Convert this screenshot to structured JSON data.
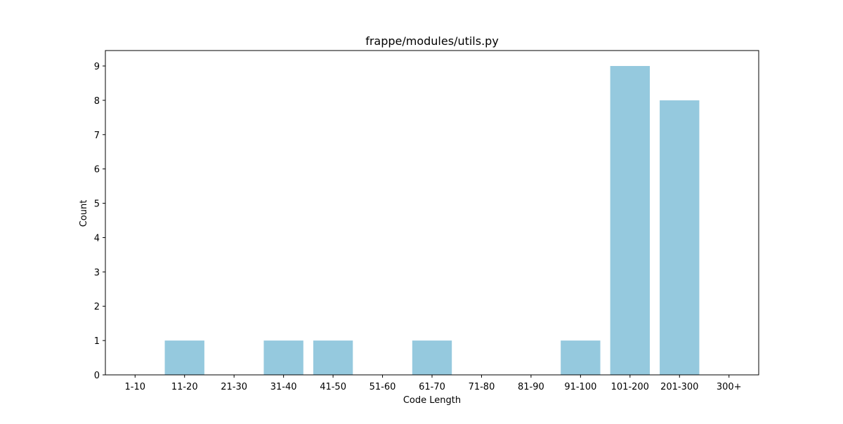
{
  "chart_data": {
    "type": "bar",
    "title": "frappe/modules/utils.py",
    "xlabel": "Code Length",
    "ylabel": "Count",
    "categories": [
      "1-10",
      "11-20",
      "21-30",
      "31-40",
      "41-50",
      "51-60",
      "61-70",
      "71-80",
      "81-90",
      "91-100",
      "101-200",
      "201-300",
      "300+"
    ],
    "values": [
      0,
      1,
      0,
      1,
      1,
      0,
      1,
      0,
      0,
      1,
      9,
      8,
      0
    ],
    "ylim": [
      0,
      9.45
    ],
    "yticks": [
      0,
      1,
      2,
      3,
      4,
      5,
      6,
      7,
      8,
      9
    ],
    "bar_color": "#95c9de",
    "grid": false,
    "legend": "none"
  }
}
